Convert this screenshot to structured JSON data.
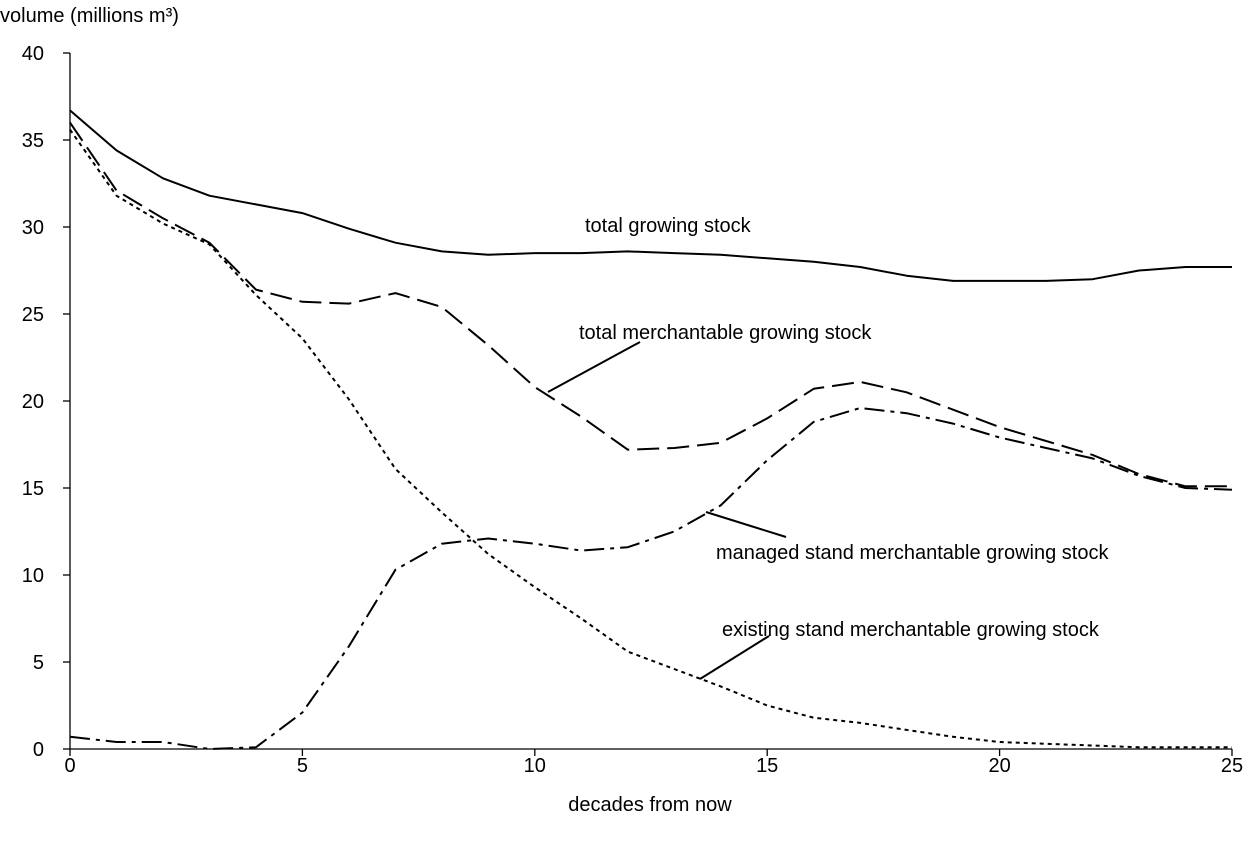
{
  "chart_data": {
    "type": "line",
    "title": "",
    "xlabel": "decades from now",
    "ylabel": "volume (millions m³)",
    "xlim": [
      0,
      25
    ],
    "ylim": [
      0,
      40
    ],
    "xticks": [
      0,
      5,
      10,
      15,
      20,
      25
    ],
    "yticks": [
      0,
      5,
      10,
      15,
      20,
      25,
      30,
      35,
      40
    ],
    "grid": false,
    "legend": "none (series labelled by callouts)",
    "x": [
      0,
      1,
      2,
      3,
      4,
      5,
      6,
      7,
      8,
      9,
      10,
      11,
      12,
      13,
      14,
      15,
      16,
      17,
      18,
      19,
      20,
      21,
      22,
      23,
      24,
      25
    ],
    "series": [
      {
        "name": "total growing stock",
        "style": "solid",
        "values": [
          36.7,
          34.4,
          32.8,
          31.8,
          31.3,
          30.8,
          29.9,
          29.1,
          28.6,
          28.4,
          28.5,
          28.5,
          28.6,
          28.5,
          28.4,
          28.2,
          28.0,
          27.7,
          27.2,
          26.9,
          26.9,
          26.9,
          27.0,
          27.5,
          27.7,
          27.7
        ]
      },
      {
        "name": "total merchantable growing stock",
        "style": "long-dash",
        "values": [
          36.0,
          32.1,
          30.5,
          29.1,
          26.4,
          25.7,
          25.6,
          26.2,
          25.4,
          23.2,
          20.8,
          19.1,
          17.2,
          17.3,
          17.6,
          19.0,
          20.7,
          21.1,
          20.5,
          19.5,
          18.5,
          17.7,
          16.9,
          15.8,
          15.1,
          15.1
        ]
      },
      {
        "name": "managed stand merchantable growing stock",
        "style": "dash-dot",
        "values": [
          0.7,
          0.4,
          0.4,
          0.0,
          0.1,
          2.1,
          5.9,
          10.3,
          11.8,
          12.1,
          11.8,
          11.4,
          11.6,
          12.5,
          14.0,
          16.6,
          18.8,
          19.6,
          19.3,
          18.7,
          17.9,
          17.3,
          16.7,
          15.7,
          15.0,
          14.9
        ]
      },
      {
        "name": "existing stand merchantable growing stock",
        "style": "dotted",
        "values": [
          35.6,
          31.8,
          30.2,
          29.0,
          26.1,
          23.6,
          20.1,
          16.1,
          13.6,
          11.2,
          9.3,
          7.5,
          5.6,
          4.6,
          3.6,
          2.5,
          1.8,
          1.5,
          1.1,
          0.7,
          0.4,
          0.3,
          0.2,
          0.1,
          0.1,
          0.1
        ]
      }
    ],
    "annotations": [
      {
        "text": "total growing stock",
        "series": "total growing stock"
      },
      {
        "text": "total merchantable growing stock",
        "series": "total merchantable growing stock"
      },
      {
        "text": "managed stand merchantable growing stock",
        "series": "managed stand merchantable growing stock"
      },
      {
        "text": "existing stand merchantable growing stock",
        "series": "existing stand merchantable growing stock"
      }
    ]
  }
}
